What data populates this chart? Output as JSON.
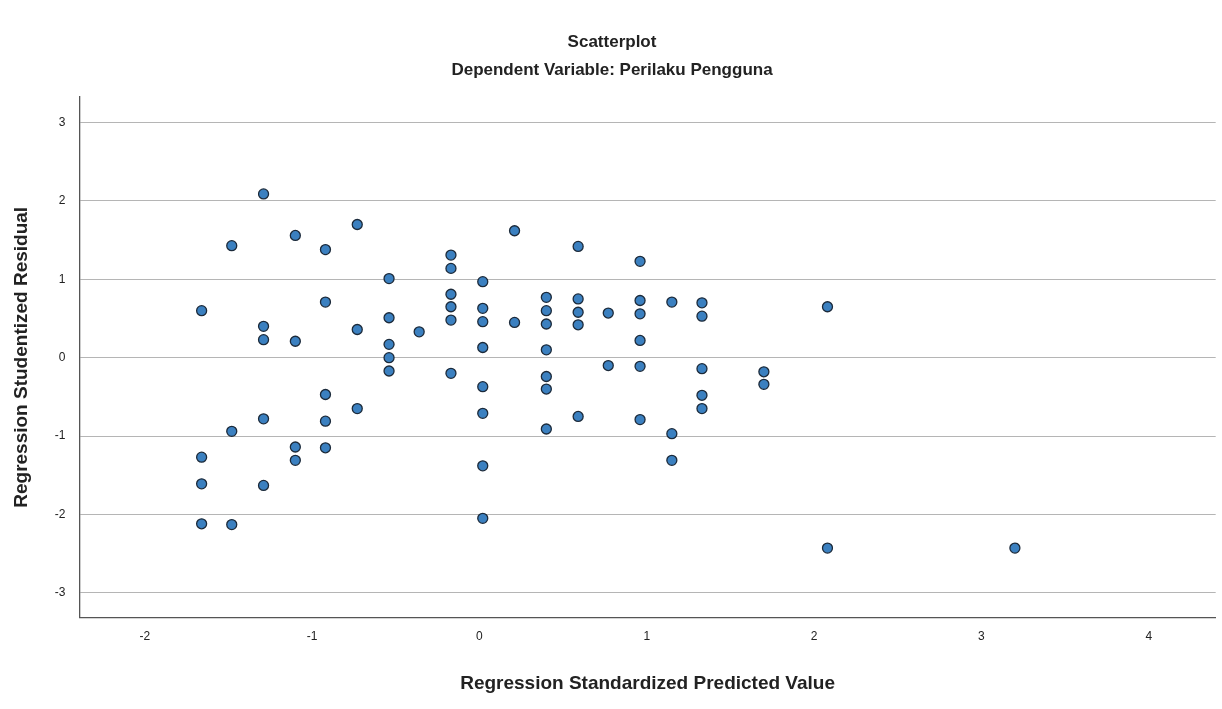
{
  "chart_data": {
    "type": "scatter",
    "title": "Scatterplot",
    "subtitle": "Dependent Variable: Perilaku Pengguna",
    "xlabel": "Regression Standardized Predicted Value",
    "ylabel": "Regression Studentized Residual",
    "series": [
      {
        "color": "#3b80c0",
        "x": [
          -1.66,
          -1.66,
          -1.66,
          -1.66,
          -1.48,
          -1.48,
          -1.48,
          -1.29,
          -1.29,
          -1.29,
          -1.29,
          -1.29,
          -1.1,
          -1.1,
          -1.1,
          -1.1,
          -0.92,
          -0.92,
          -0.92,
          -0.92,
          -0.92,
          -0.73,
          -0.73,
          -0.73,
          -0.54,
          -0.54,
          -0.54,
          -0.54,
          -0.54,
          -0.36,
          -0.17,
          -0.17,
          -0.17,
          -0.17,
          -0.17,
          -0.17,
          0.02,
          0.02,
          0.02,
          0.02,
          0.02,
          0.02,
          0.02,
          0.02,
          0.21,
          0.21,
          0.4,
          0.4,
          0.4,
          0.4,
          0.4,
          0.4,
          0.4,
          0.59,
          0.59,
          0.59,
          0.59,
          0.59,
          0.77,
          0.77,
          0.96,
          0.96,
          0.96,
          0.96,
          0.96,
          0.96,
          1.15,
          1.15,
          1.15,
          1.33,
          1.33,
          1.33,
          1.33,
          1.33,
          1.7,
          1.7,
          2.08,
          2.08,
          3.2
        ],
        "values": [
          0.6,
          -1.27,
          -1.61,
          -2.12,
          1.43,
          -0.94,
          -2.13,
          2.09,
          0.4,
          0.23,
          -0.78,
          -1.63,
          1.56,
          0.21,
          -1.14,
          -1.31,
          1.38,
          0.71,
          -0.47,
          -0.81,
          -1.15,
          1.7,
          0.36,
          -0.65,
          1.01,
          0.51,
          0.17,
          0.0,
          -0.17,
          0.33,
          1.31,
          1.14,
          0.81,
          0.65,
          0.48,
          -0.2,
          0.97,
          0.63,
          0.46,
          0.13,
          -0.37,
          -0.71,
          -1.38,
          -2.05,
          1.62,
          0.45,
          0.77,
          0.6,
          0.43,
          0.1,
          -0.24,
          -0.4,
          -0.91,
          1.42,
          0.75,
          0.58,
          0.42,
          -0.75,
          0.57,
          -0.1,
          1.23,
          0.73,
          0.56,
          0.22,
          -0.11,
          -0.79,
          0.71,
          -0.97,
          -1.31,
          0.7,
          0.53,
          -0.14,
          -0.48,
          -0.65,
          -0.18,
          -0.34,
          0.65,
          -2.43,
          -2.43
        ]
      }
    ],
    "xlim": [
      -2.39,
      4.4
    ],
    "ylim": [
      -3.32,
      3.33
    ],
    "xticks": [
      -2,
      -1,
      0,
      1,
      2,
      3,
      4
    ],
    "yticks": [
      -3,
      -2,
      -1,
      0,
      1,
      2,
      3
    ],
    "grid": "y",
    "marker": "circle",
    "legend": false
  }
}
